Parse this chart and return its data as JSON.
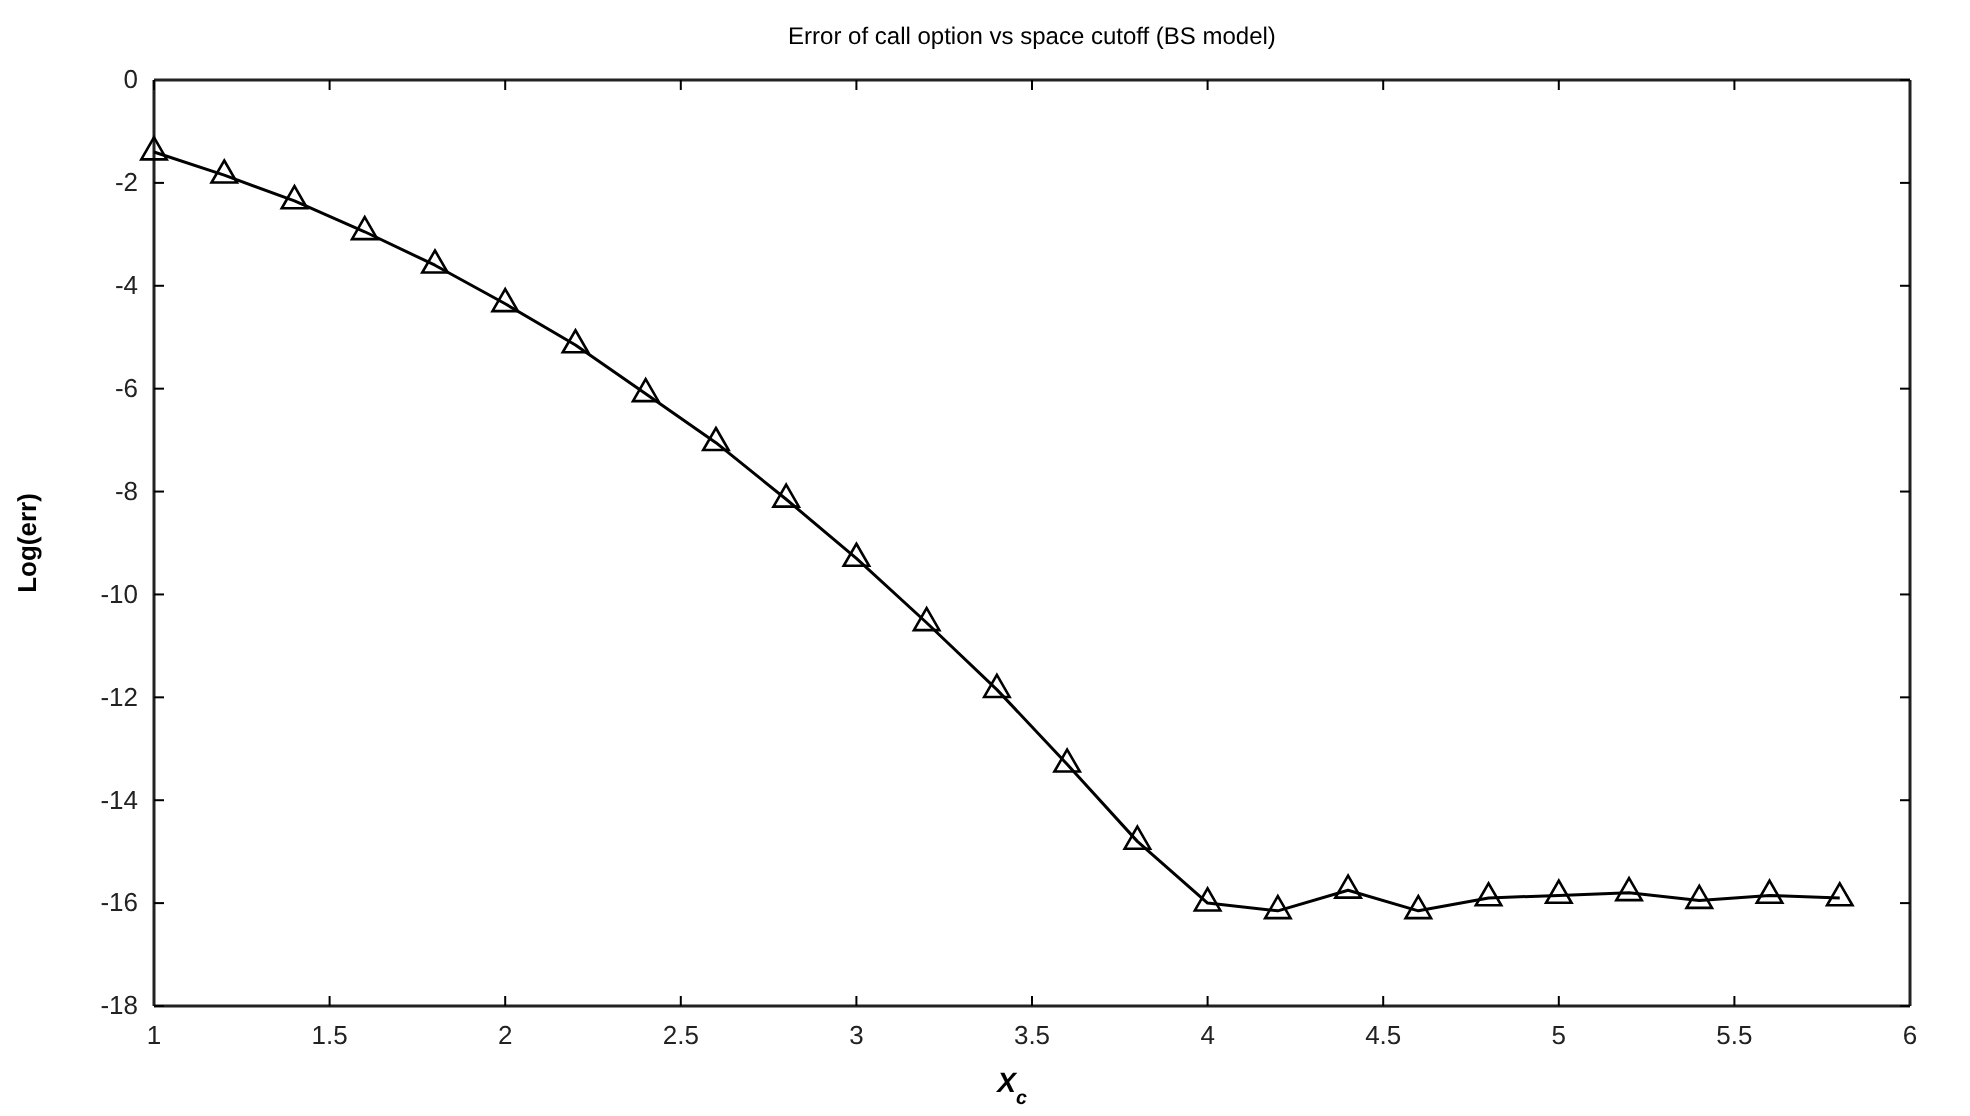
{
  "chart_data": {
    "type": "line",
    "title": "Error of call option vs space cutoff (BS model)",
    "xlabel": "X$_{c}$",
    "ylabel": "Log(err)",
    "x": [
      1,
      1.2,
      1.4,
      1.6,
      1.8,
      2,
      2.2,
      2.4,
      2.6,
      2.8,
      3,
      3.2,
      3.4,
      3.6,
      3.8,
      4,
      4.2,
      4.4,
      4.6,
      4.8,
      5,
      5.2,
      5.4,
      5.6,
      5.8
    ],
    "series": [
      {
        "color": "#000000",
        "values": [
          -1.4,
          -1.85,
          -2.35,
          -2.95,
          -3.6,
          -4.35,
          -5.15,
          -6.1,
          -7.05,
          -8.15,
          -9.3,
          -10.55,
          -11.85,
          -13.3,
          -14.8,
          -16.0,
          -16.15,
          -15.75,
          -16.15,
          -15.9,
          -15.85,
          -15.8,
          -15.95,
          -15.85,
          -15.9
        ]
      }
    ],
    "xlim": [
      1,
      6
    ],
    "xticks": [
      1,
      1.5,
      2,
      2.5,
      3,
      3.5,
      4,
      4.5,
      5,
      5.5,
      6
    ],
    "ylim": [
      -18,
      0
    ],
    "yticks": [
      -18,
      -16,
      -14,
      -12,
      -10,
      -8,
      -6,
      -4,
      -2,
      0
    ],
    "marker": "triangle",
    "line_style": "solid",
    "grid": false
  }
}
